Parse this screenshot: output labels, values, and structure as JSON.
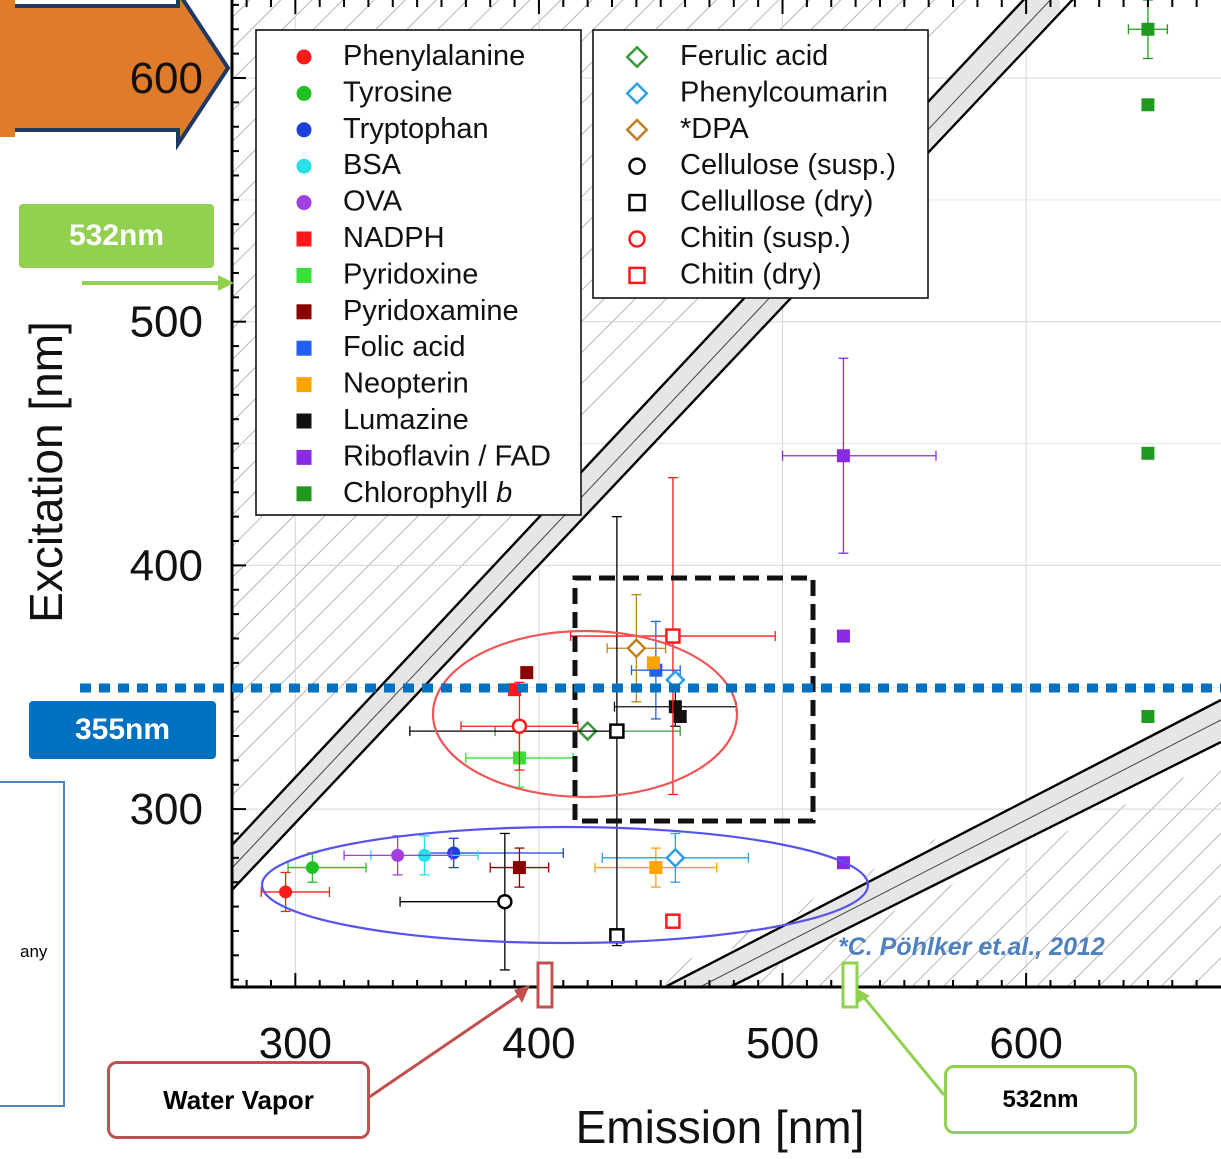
{
  "chart_data": {
    "type": "scatter",
    "xlabel": "Emission [nm]",
    "ylabel": "Excitation [nm]",
    "xlim": [
      274,
      680
    ],
    "ylim": [
      227,
      632
    ],
    "xticks": [
      300,
      400,
      500,
      600
    ],
    "yticks": [
      300,
      400,
      500,
      600
    ],
    "grid": true,
    "legend_placement": "top-left, two columns",
    "series": [
      {
        "name": "Phenylalanine",
        "marker": "circle-filled",
        "color": "#ff1a1a",
        "x": 296,
        "y": 266,
        "xerr": [
          10,
          18
        ],
        "yerr": [
          8,
          8
        ]
      },
      {
        "name": "Tyrosine",
        "marker": "circle-filled",
        "color": "#22c022",
        "x": 307,
        "y": 276,
        "xerr": [
          10,
          22
        ],
        "yerr": [
          6,
          6
        ]
      },
      {
        "name": "Tryptophan",
        "marker": "circle-filled",
        "color": "#1d3fdc",
        "x": 365,
        "y": 282,
        "xerr": [
          12,
          45
        ],
        "yerr": [
          6,
          6
        ]
      },
      {
        "name": "BSA",
        "marker": "circle-filled",
        "color": "#28e0e8",
        "x": 353,
        "y": 281,
        "xerr": [
          22,
          22
        ],
        "yerr": [
          8,
          8
        ]
      },
      {
        "name": "OVA",
        "marker": "circle-filled",
        "color": "#a040e0",
        "x": 342,
        "y": 281,
        "xerr": [
          22,
          22
        ],
        "yerr": [
          8,
          8
        ]
      },
      {
        "name": "NADPH",
        "marker": "square-filled",
        "color": "#ff1a1a",
        "x": 390,
        "y": 349,
        "xerr": [
          0,
          0
        ],
        "yerr": [
          0,
          0
        ]
      },
      {
        "name": "Pyridoxine",
        "marker": "square-filled",
        "color": "#38e038",
        "x": 392,
        "y": 321,
        "xerr": [
          22,
          22
        ],
        "yerr": [
          12,
          12
        ]
      },
      {
        "name": "Pyridoxamine",
        "marker": "square-filled",
        "color": "#8b0000",
        "x": 392,
        "y": 276,
        "xerr": [
          12,
          12
        ],
        "yerr": [
          8,
          8
        ]
      },
      {
        "name": "Folic acid",
        "marker": "square-filled",
        "color": "#2060f0",
        "x": 448,
        "y": 357,
        "xerr": [
          10,
          10
        ],
        "yerr": [
          20,
          20
        ]
      },
      {
        "name": "Neopterin",
        "marker": "square-filled",
        "color": "#ffa500",
        "x": 448,
        "y": 276,
        "xerr": [
          25,
          25
        ],
        "yerr": [
          8,
          8
        ]
      },
      {
        "name": "Lumazine",
        "marker": "square-filled",
        "color": "#111111",
        "x": 456,
        "y": 342,
        "xerr": [
          25,
          25
        ],
        "yerr": [
          8,
          8
        ]
      },
      {
        "name": "Riboflavin / FAD",
        "marker": "square-filled",
        "color": "#8a2be2",
        "x": 525,
        "y": 445,
        "xerr": [
          25,
          38
        ],
        "yerr": [
          40,
          40
        ]
      },
      {
        "name": "Chlorophyll b",
        "marker": "square-filled",
        "color": "#1f9a1f",
        "x": 650,
        "y": 620,
        "xerr": [
          8,
          8
        ],
        "yerr": [
          12,
          12
        ]
      },
      {
        "name": "Ferulic acid",
        "marker": "diamond-open",
        "color": "#3a9a3a",
        "x": 420,
        "y": 332,
        "xerr": [
          38,
          38
        ],
        "yerr": [
          0,
          0
        ]
      },
      {
        "name": "Phenylcoumarin",
        "marker": "diamond-open",
        "color": "#2aa0e8",
        "x": 456,
        "y": 280,
        "xerr": [
          30,
          30
        ],
        "yerr": [
          10,
          10
        ]
      },
      {
        "name": "*DPA",
        "marker": "diamond-open",
        "color": "#c08020",
        "x": 440,
        "y": 366,
        "xerr": [
          12,
          12
        ],
        "yerr": [
          22,
          22
        ]
      },
      {
        "name": "Cellulose (susp.)",
        "marker": "circle-open",
        "color": "#000000",
        "x": 386,
        "y": 262,
        "xerr": [
          43,
          0
        ],
        "yerr": [
          28,
          28
        ]
      },
      {
        "name": "Cellullose (dry)",
        "marker": "square-open",
        "color": "#000000",
        "x": 432,
        "y": 332,
        "xerr": [
          85,
          0
        ],
        "yerr": [
          88,
          88
        ]
      },
      {
        "name": "Chitin (susp.)",
        "marker": "circle-open",
        "color": "#ff1a1a",
        "x": 392,
        "y": 334,
        "xerr": [
          24,
          24
        ],
        "yerr": [
          18,
          18
        ]
      },
      {
        "name": "Chitin (dry)",
        "marker": "square-open",
        "color": "#ff1a1a",
        "x": 455,
        "y": 371,
        "xerr": [
          42,
          42
        ],
        "yerr": [
          65,
          65
        ]
      }
    ],
    "extra_points": [
      {
        "series": "Pyridoxamine",
        "x": 395,
        "y": 356
      },
      {
        "series": "Riboflavin / FAD",
        "x": 525,
        "y": 371
      },
      {
        "series": "Riboflavin / FAD",
        "x": 525,
        "y": 278
      },
      {
        "series": "Chlorophyll b",
        "x": 650,
        "y": 589
      },
      {
        "series": "Chlorophyll b",
        "x": 650,
        "y": 446
      },
      {
        "series": "Chlorophyll b",
        "x": 650,
        "y": 338
      },
      {
        "series": "Cellullose (dry)",
        "x": 432,
        "y": 248
      },
      {
        "series": "Chitin (dry)",
        "x": 455,
        "y": 254
      },
      {
        "series": "Phenylcoumarin",
        "x": 456,
        "y": 353
      },
      {
        "series": "Neopterin",
        "x": 447,
        "y": 360
      },
      {
        "series": "Lumazine",
        "x": 458,
        "y": 338
      }
    ]
  },
  "annotations": {
    "label_532_top": "532nm",
    "label_355": "355nm",
    "water_vapor": "Water Vapor",
    "label_532_bottom": "532nm",
    "reference": "*C. Pöhlker et.al., 2012",
    "side_fragment": "any"
  },
  "colors": {
    "arrow_orange": "#e07b2a",
    "green_label": "#92d050",
    "blue_label": "#0070c0",
    "water_red": "#c0504d",
    "ref_blue": "#4f81bd",
    "dotted_line": "#0070c0"
  }
}
